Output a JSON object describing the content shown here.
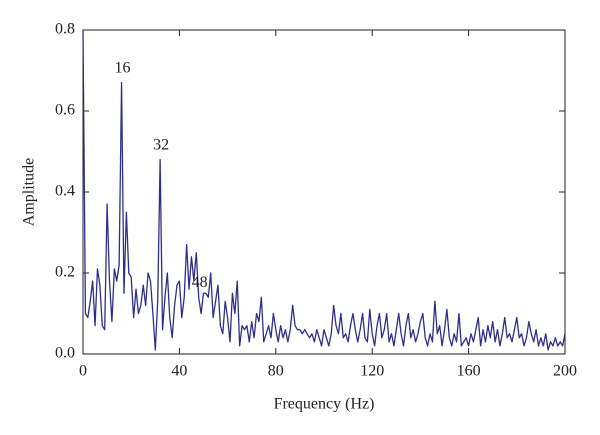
{
  "chart_data": {
    "type": "line",
    "x_label": "Frequency (Hz)",
    "y_label": "Amplitude",
    "x": [
      0,
      1,
      2,
      3,
      4,
      5,
      6,
      7,
      8,
      9,
      10,
      11,
      12,
      13,
      14,
      15,
      16,
      17,
      18,
      19,
      20,
      21,
      22,
      23,
      24,
      25,
      26,
      27,
      28,
      29,
      30,
      31,
      32,
      33,
      34,
      35,
      36,
      37,
      38,
      39,
      40,
      41,
      42,
      43,
      44,
      45,
      46,
      47,
      48,
      49,
      50,
      51,
      52,
      53,
      54,
      55,
      56,
      57,
      58,
      59,
      60,
      61,
      62,
      63,
      64,
      65,
      66,
      67,
      68,
      69,
      70,
      71,
      72,
      73,
      74,
      75,
      76,
      77,
      78,
      79,
      80,
      81,
      82,
      83,
      84,
      85,
      86,
      87,
      88,
      89,
      90,
      91,
      92,
      93,
      94,
      95,
      96,
      97,
      98,
      99,
      100,
      101,
      102,
      103,
      104,
      105,
      106,
      107,
      108,
      109,
      110,
      111,
      112,
      113,
      114,
      115,
      116,
      117,
      118,
      119,
      120,
      121,
      122,
      123,
      124,
      125,
      126,
      127,
      128,
      129,
      130,
      131,
      132,
      133,
      134,
      135,
      136,
      137,
      138,
      139,
      140,
      141,
      142,
      143,
      144,
      145,
      146,
      147,
      148,
      149,
      150,
      151,
      152,
      153,
      154,
      155,
      156,
      157,
      158,
      159,
      160,
      161,
      162,
      163,
      164,
      165,
      166,
      167,
      168,
      169,
      170,
      171,
      172,
      173,
      174,
      175,
      176,
      177,
      178,
      179,
      180,
      181,
      182,
      183,
      184,
      185,
      186,
      187,
      188,
      189,
      190,
      191,
      192,
      193,
      194,
      195,
      196,
      197,
      198,
      199,
      200
    ],
    "series": [
      {
        "color": "#2e2e8c",
        "values": [
          0.8,
          0.1,
          0.09,
          0.13,
          0.18,
          0.07,
          0.21,
          0.17,
          0.07,
          0.06,
          0.37,
          0.18,
          0.08,
          0.21,
          0.18,
          0.22,
          0.67,
          0.15,
          0.35,
          0.2,
          0.19,
          0.09,
          0.16,
          0.1,
          0.12,
          0.17,
          0.12,
          0.2,
          0.18,
          0.1,
          0.01,
          0.13,
          0.48,
          0.06,
          0.14,
          0.2,
          0.09,
          0.04,
          0.12,
          0.17,
          0.18,
          0.09,
          0.14,
          0.27,
          0.16,
          0.24,
          0.18,
          0.25,
          0.14,
          0.1,
          0.15,
          0.15,
          0.14,
          0.2,
          0.09,
          0.13,
          0.17,
          0.07,
          0.05,
          0.13,
          0.09,
          0.03,
          0.15,
          0.1,
          0.18,
          0.02,
          0.07,
          0.06,
          0.07,
          0.03,
          0.08,
          0.04,
          0.1,
          0.08,
          0.14,
          0.03,
          0.05,
          0.07,
          0.04,
          0.1,
          0.06,
          0.03,
          0.07,
          0.04,
          0.06,
          0.03,
          0.06,
          0.12,
          0.07,
          0.06,
          0.06,
          0.05,
          0.06,
          0.05,
          0.04,
          0.05,
          0.03,
          0.06,
          0.04,
          0.02,
          0.06,
          0.04,
          0.02,
          0.05,
          0.12,
          0.07,
          0.05,
          0.1,
          0.04,
          0.05,
          0.03,
          0.07,
          0.1,
          0.06,
          0.03,
          0.06,
          0.1,
          0.04,
          0.03,
          0.11,
          0.05,
          0.02,
          0.07,
          0.1,
          0.04,
          0.06,
          0.1,
          0.03,
          0.05,
          0.02,
          0.06,
          0.1,
          0.05,
          0.02,
          0.07,
          0.1,
          0.04,
          0.06,
          0.03,
          0.05,
          0.08,
          0.1,
          0.04,
          0.02,
          0.05,
          0.03,
          0.13,
          0.05,
          0.07,
          0.02,
          0.06,
          0.11,
          0.04,
          0.02,
          0.05,
          0.03,
          0.1,
          0.02,
          0.03,
          0.04,
          0.02,
          0.05,
          0.03,
          0.06,
          0.09,
          0.02,
          0.06,
          0.03,
          0.07,
          0.04,
          0.08,
          0.03,
          0.06,
          0.02,
          0.05,
          0.09,
          0.04,
          0.05,
          0.03,
          0.06,
          0.09,
          0.04,
          0.05,
          0.02,
          0.04,
          0.08,
          0.05,
          0.03,
          0.06,
          0.02,
          0.04,
          0.02,
          0.05,
          0.01,
          0.03,
          0.02,
          0.04,
          0.02,
          0.03,
          0.02,
          0.05
        ]
      }
    ],
    "annotations": [
      16,
      32,
      48
    ],
    "xlim": [
      0,
      200
    ],
    "ylim": [
      0,
      0.8
    ],
    "xticks": [
      0,
      40,
      80,
      120,
      160,
      200
    ],
    "yticks": [
      {
        "value": 0,
        "label": "0.0"
      },
      0.2,
      0.4,
      0.6,
      0.8
    ]
  }
}
